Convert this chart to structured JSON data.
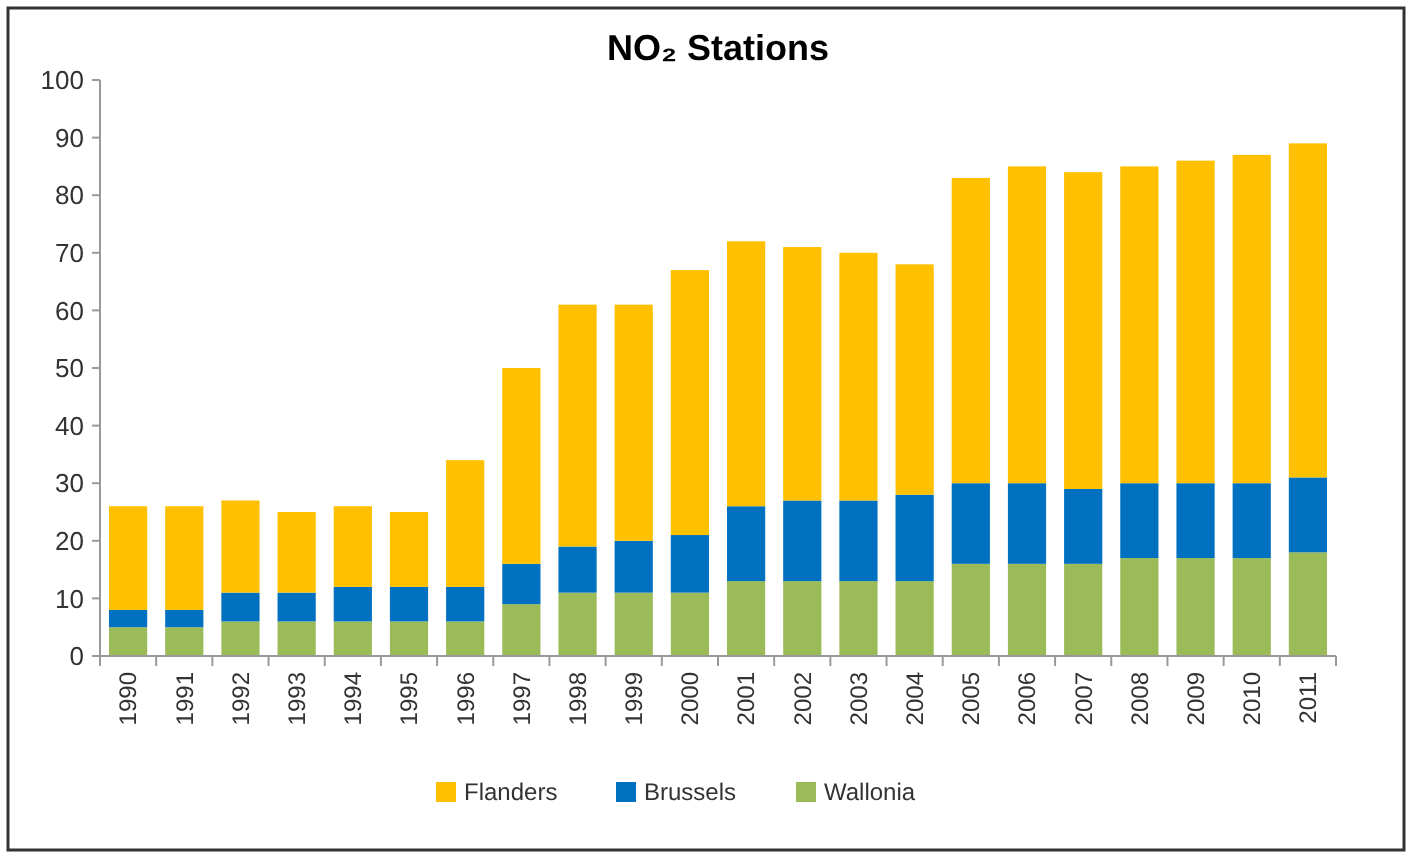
{
  "chart_data": {
    "type": "bar",
    "title": "NO₂ Stations",
    "stacked": true,
    "legend": "bottom",
    "grid": false,
    "categories": [
      "1990",
      "1991",
      "1992",
      "1993",
      "1994",
      "1995",
      "1996",
      "1997",
      "1998",
      "1999",
      "2000",
      "2001",
      "2002",
      "2003",
      "2004",
      "2005",
      "2006",
      "2007",
      "2008",
      "2009",
      "2010",
      "2011"
    ],
    "ylim": [
      0,
      100
    ],
    "yticks": [
      0,
      10,
      20,
      30,
      40,
      50,
      60,
      70,
      80,
      90,
      100
    ],
    "series": [
      {
        "name": "Wallonia",
        "color": "#9bbb59",
        "values": [
          5,
          5,
          6,
          6,
          6,
          6,
          6,
          9,
          11,
          11,
          11,
          13,
          13,
          13,
          13,
          16,
          16,
          16,
          17,
          17,
          17,
          18
        ]
      },
      {
        "name": "Brussels",
        "color": "#0070c0",
        "values": [
          3,
          3,
          5,
          5,
          6,
          6,
          6,
          7,
          8,
          9,
          10,
          13,
          14,
          14,
          15,
          14,
          14,
          13,
          13,
          13,
          13,
          13
        ]
      },
      {
        "name": "Flanders",
        "color": "#ffc000",
        "values": [
          18,
          18,
          16,
          14,
          14,
          13,
          22,
          34,
          42,
          41,
          46,
          46,
          44,
          43,
          40,
          53,
          55,
          55,
          55,
          56,
          57,
          58
        ]
      }
    ]
  }
}
